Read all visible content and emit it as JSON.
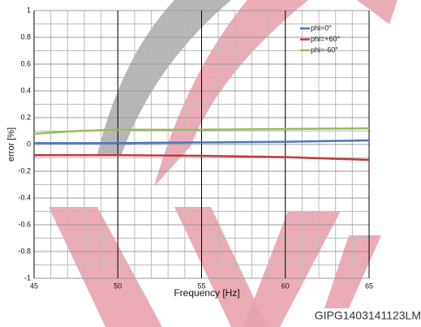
{
  "chart_data": {
    "type": "line",
    "x_label": "Frequency [Hz]",
    "y_label": "error [%]",
    "x": [
      45,
      47.5,
      50,
      55,
      60,
      65
    ],
    "series": [
      {
        "name": "phi=0°",
        "color": "#4a77c0",
        "values": [
          0.01,
          0.01,
          0.01,
          0.015,
          0.02,
          0.03
        ]
      },
      {
        "name": "phi=+60°",
        "color": "#c0393b",
        "values": [
          -0.08,
          -0.08,
          -0.08,
          -0.085,
          -0.095,
          -0.115
        ]
      },
      {
        "name": "phi=-60°",
        "color": "#9bbb59",
        "values": [
          0.08,
          0.1,
          0.11,
          0.11,
          0.115,
          0.12
        ]
      }
    ],
    "xlim": [
      45,
      65
    ],
    "xticks": [
      45,
      50,
      55,
      60,
      65
    ],
    "ylim": [
      -1,
      1
    ],
    "yticks": [
      -1,
      -0.8,
      -0.6,
      -0.4,
      -0.2,
      0,
      0.2,
      0.4,
      0.6,
      0.8,
      1
    ],
    "grid": true,
    "minor_grid": true,
    "legend": "top-right",
    "annotation": "GIPG1403141123LM"
  }
}
